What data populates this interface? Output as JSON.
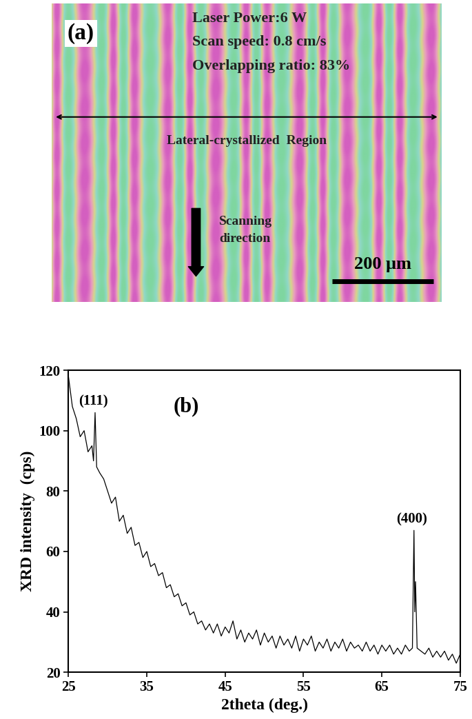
{
  "panel_a": {
    "label": "(a)",
    "settings_text": [
      "Laser Power:6 W",
      "Scan speed: 0.8 cm/s",
      "Overlapping ratio: 83%"
    ],
    "region_label": "Lateral-crystallized  Region",
    "direction_label": "Scanning\ndirection",
    "scale_bar_label": "200 μm"
  },
  "chart_data": {
    "type": "line",
    "label": "(b)",
    "x_label": "2theta (deg.)",
    "y_label": "XRD intensity  (cps)",
    "color": "#000000",
    "xlim": [
      25,
      75
    ],
    "xticks": [
      25,
      35,
      45,
      55,
      65,
      75
    ],
    "ylim": [
      20,
      120
    ],
    "yticks": [
      20,
      40,
      60,
      80,
      100,
      120
    ],
    "annotations": [
      {
        "text": "(111)",
        "x": 28.4,
        "y": 106
      },
      {
        "text": "(400)",
        "x": 69.1,
        "y": 67
      }
    ],
    "x": [
      25.0,
      25.5,
      26.0,
      26.5,
      27.0,
      27.5,
      28.0,
      28.2,
      28.4,
      28.6,
      29.0,
      29.5,
      30.0,
      30.5,
      31.0,
      31.5,
      32.0,
      32.5,
      33.0,
      33.5,
      34.0,
      34.5,
      35.0,
      35.5,
      36.0,
      36.5,
      37.0,
      37.5,
      38.0,
      38.5,
      39.0,
      39.5,
      40.0,
      40.5,
      41.0,
      41.5,
      42.0,
      42.5,
      43.0,
      43.5,
      44.0,
      44.5,
      45.0,
      45.5,
      46.0,
      46.5,
      47.0,
      47.5,
      48.0,
      48.5,
      49.0,
      49.5,
      50.0,
      50.5,
      51.0,
      51.5,
      52.0,
      52.5,
      53.0,
      53.5,
      54.0,
      54.5,
      55.0,
      55.5,
      56.0,
      56.5,
      57.0,
      57.5,
      58.0,
      58.5,
      59.0,
      59.5,
      60.0,
      60.5,
      61.0,
      61.5,
      62.0,
      62.5,
      63.0,
      63.5,
      64.0,
      64.5,
      65.0,
      65.5,
      66.0,
      66.5,
      67.0,
      67.5,
      68.0,
      68.5,
      68.9,
      69.1,
      69.2,
      69.3,
      69.5,
      70.0,
      70.5,
      71.0,
      71.5,
      72.0,
      72.5,
      73.0,
      73.5,
      74.0,
      74.5,
      75.0
    ],
    "values": [
      118,
      108,
      104,
      98,
      100,
      93,
      95,
      90,
      106,
      88,
      86,
      84,
      80,
      76,
      78,
      70,
      72,
      66,
      68,
      62,
      63,
      58,
      60,
      55,
      56,
      52,
      53,
      48,
      49,
      45,
      46,
      42,
      43,
      39,
      40,
      36,
      37,
      34,
      36,
      33,
      36,
      32,
      35,
      33,
      37,
      31,
      34,
      30,
      33,
      31,
      34,
      29,
      33,
      30,
      32,
      28,
      32,
      29,
      31,
      28,
      32,
      27,
      31,
      29,
      32,
      27,
      30,
      28,
      31,
      27,
      30,
      28,
      31,
      27,
      30,
      28,
      29,
      27,
      30,
      27,
      29,
      26,
      29,
      27,
      29,
      26,
      28,
      26,
      29,
      27,
      28,
      67,
      40,
      50,
      28,
      27,
      26,
      28,
      25,
      27,
      25,
      27,
      24,
      26,
      23,
      26
    ]
  }
}
